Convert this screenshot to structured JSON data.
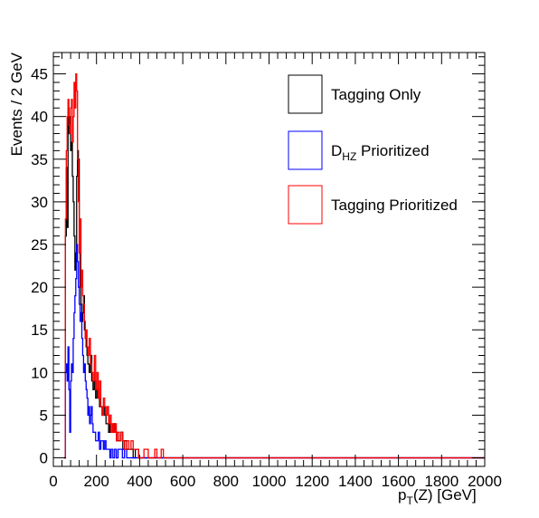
{
  "chart_data": {
    "type": "histogram",
    "title": "",
    "xlabel_main": "p",
    "xlabel_sub": "T",
    "xlabel_rest": "(Z) [GeV]",
    "ylabel": "Events / 2 GeV",
    "xlim": [
      0,
      2000
    ],
    "ylim": [
      -1,
      47.5
    ],
    "bin_width": 2,
    "grid": false,
    "legend_placement": "top-right",
    "x_ticks": [
      0,
      200,
      400,
      600,
      800,
      1000,
      1200,
      1400,
      1600,
      1800,
      2000
    ],
    "x_tick_labels": [
      "0",
      "200",
      "400",
      "600",
      "800",
      "1000",
      "1200",
      "1400",
      "1600",
      "1800",
      "2000"
    ],
    "y_ticks": [
      0,
      5,
      10,
      15,
      20,
      25,
      30,
      35,
      40,
      45
    ],
    "y_tick_labels": [
      "0",
      "5",
      "10",
      "15",
      "20",
      "25",
      "30",
      "35",
      "40",
      "45"
    ],
    "series": [
      {
        "name": "Tagging Only",
        "label_main": "Tagging Only",
        "color": "#000000",
        "points": [
          [
            50,
            0
          ],
          [
            56,
            26
          ],
          [
            60,
            34
          ],
          [
            64,
            27
          ],
          [
            68,
            41
          ],
          [
            72,
            38
          ],
          [
            76,
            40
          ],
          [
            80,
            36
          ],
          [
            84,
            37
          ],
          [
            88,
            33
          ],
          [
            92,
            30
          ],
          [
            96,
            26
          ],
          [
            100,
            22
          ],
          [
            104,
            24
          ],
          [
            108,
            33
          ],
          [
            112,
            36
          ],
          [
            116,
            35
          ],
          [
            120,
            25
          ],
          [
            124,
            20
          ],
          [
            128,
            18
          ],
          [
            132,
            16
          ],
          [
            136,
            17
          ],
          [
            140,
            19
          ],
          [
            144,
            15
          ],
          [
            148,
            14
          ],
          [
            152,
            13
          ],
          [
            156,
            12
          ],
          [
            160,
            11
          ],
          [
            166,
            10
          ],
          [
            172,
            12
          ],
          [
            178,
            9
          ],
          [
            184,
            8
          ],
          [
            190,
            9
          ],
          [
            196,
            7
          ],
          [
            202,
            8
          ],
          [
            208,
            7
          ],
          [
            214,
            6
          ],
          [
            220,
            6
          ],
          [
            226,
            5
          ],
          [
            232,
            6
          ],
          [
            238,
            5
          ],
          [
            244,
            4
          ],
          [
            250,
            4
          ],
          [
            256,
            3
          ],
          [
            262,
            4
          ],
          [
            268,
            3
          ],
          [
            274,
            3
          ],
          [
            280,
            4
          ],
          [
            286,
            3
          ],
          [
            292,
            2
          ],
          [
            298,
            2
          ],
          [
            306,
            2
          ],
          [
            314,
            3
          ],
          [
            322,
            1
          ],
          [
            330,
            2
          ],
          [
            340,
            1
          ],
          [
            350,
            1
          ],
          [
            360,
            1
          ],
          [
            370,
            0
          ],
          [
            380,
            1
          ],
          [
            395,
            0
          ],
          [
            2000,
            0
          ]
        ]
      },
      {
        "name": "D_HZ Prioritized",
        "label_main": "D",
        "label_sub": "HZ",
        "label_rest": " Prioritized",
        "color": "#0000ff",
        "points": [
          [
            50,
            0
          ],
          [
            56,
            10
          ],
          [
            60,
            11
          ],
          [
            64,
            9
          ],
          [
            68,
            13
          ],
          [
            72,
            8
          ],
          [
            76,
            3
          ],
          [
            80,
            9
          ],
          [
            84,
            11
          ],
          [
            88,
            10
          ],
          [
            92,
            14
          ],
          [
            96,
            17
          ],
          [
            100,
            19
          ],
          [
            104,
            21
          ],
          [
            108,
            25
          ],
          [
            112,
            23
          ],
          [
            116,
            20
          ],
          [
            120,
            18
          ],
          [
            124,
            16
          ],
          [
            128,
            17
          ],
          [
            132,
            14
          ],
          [
            136,
            12
          ],
          [
            140,
            10
          ],
          [
            144,
            11
          ],
          [
            148,
            9
          ],
          [
            152,
            8
          ],
          [
            156,
            7
          ],
          [
            160,
            5
          ],
          [
            164,
            6
          ],
          [
            168,
            4
          ],
          [
            172,
            5
          ],
          [
            176,
            6
          ],
          [
            180,
            4
          ],
          [
            184,
            3
          ],
          [
            190,
            3
          ],
          [
            196,
            2
          ],
          [
            202,
            2
          ],
          [
            208,
            3
          ],
          [
            214,
            1
          ],
          [
            220,
            2
          ],
          [
            226,
            2
          ],
          [
            232,
            1
          ],
          [
            238,
            2
          ],
          [
            244,
            1
          ],
          [
            250,
            1
          ],
          [
            256,
            1
          ],
          [
            262,
            0
          ],
          [
            268,
            1
          ],
          [
            276,
            0
          ],
          [
            284,
            1
          ],
          [
            292,
            0
          ],
          [
            300,
            1
          ],
          [
            320,
            0
          ],
          [
            330,
            1
          ],
          [
            340,
            0
          ],
          [
            2000,
            0
          ]
        ]
      },
      {
        "name": "Tagging Prioritized",
        "label_main": "Tagging Prioritized",
        "color": "#ff0000",
        "points": [
          [
            50,
            0
          ],
          [
            56,
            28
          ],
          [
            60,
            36
          ],
          [
            64,
            40
          ],
          [
            68,
            42
          ],
          [
            72,
            39
          ],
          [
            76,
            38
          ],
          [
            80,
            41
          ],
          [
            84,
            42
          ],
          [
            88,
            37
          ],
          [
            92,
            40
          ],
          [
            96,
            44
          ],
          [
            100,
            41
          ],
          [
            104,
            45
          ],
          [
            108,
            43
          ],
          [
            112,
            35
          ],
          [
            116,
            30
          ],
          [
            120,
            24
          ],
          [
            124,
            28
          ],
          [
            128,
            20
          ],
          [
            132,
            22
          ],
          [
            136,
            19
          ],
          [
            140,
            18
          ],
          [
            144,
            16
          ],
          [
            148,
            14
          ],
          [
            152,
            15
          ],
          [
            156,
            13
          ],
          [
            160,
            12
          ],
          [
            166,
            14
          ],
          [
            172,
            11
          ],
          [
            178,
            10
          ],
          [
            184,
            9
          ],
          [
            190,
            12
          ],
          [
            196,
            8
          ],
          [
            202,
            10
          ],
          [
            208,
            7
          ],
          [
            214,
            9
          ],
          [
            220,
            6
          ],
          [
            226,
            5
          ],
          [
            232,
            7
          ],
          [
            238,
            6
          ],
          [
            244,
            5
          ],
          [
            250,
            6
          ],
          [
            256,
            4
          ],
          [
            262,
            5
          ],
          [
            268,
            3
          ],
          [
            274,
            4
          ],
          [
            280,
            3
          ],
          [
            286,
            4
          ],
          [
            292,
            2
          ],
          [
            298,
            3
          ],
          [
            306,
            2
          ],
          [
            314,
            3
          ],
          [
            322,
            2
          ],
          [
            330,
            1
          ],
          [
            340,
            2
          ],
          [
            350,
            1
          ],
          [
            360,
            2
          ],
          [
            370,
            1
          ],
          [
            380,
            1
          ],
          [
            395,
            0
          ],
          [
            420,
            1
          ],
          [
            440,
            0
          ],
          [
            470,
            1
          ],
          [
            480,
            0
          ],
          [
            500,
            1
          ],
          [
            510,
            0
          ],
          [
            2000,
            0
          ]
        ]
      }
    ]
  }
}
